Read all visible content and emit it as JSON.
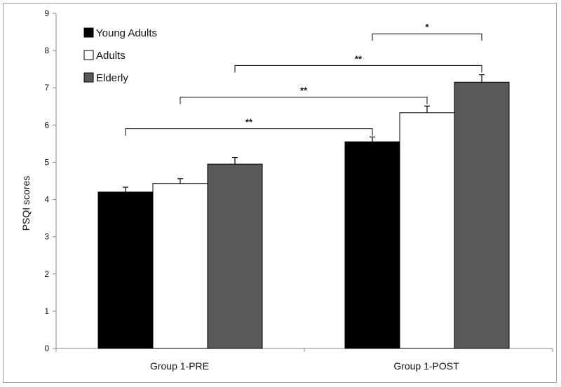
{
  "chart_data": {
    "type": "bar",
    "title": "",
    "xlabel": "",
    "ylabel": "PSQI scores",
    "ylim": [
      0,
      9
    ],
    "yticks": [
      0,
      1,
      2,
      3,
      4,
      5,
      6,
      7,
      8,
      9
    ],
    "grid": false,
    "legend_position": "top-left",
    "categories": [
      "Group 1-PRE",
      "Group 1-POST"
    ],
    "series": [
      {
        "name": "Young Adults",
        "color": "#000000",
        "values": [
          4.2,
          5.55
        ],
        "errors": [
          0.13,
          0.13
        ]
      },
      {
        "name": "Adults",
        "color": "#ffffff",
        "values": [
          4.43,
          6.33
        ],
        "errors": [
          0.13,
          0.18
        ]
      },
      {
        "name": "Elderly",
        "color": "#595959",
        "values": [
          4.95,
          7.15
        ],
        "errors": [
          0.18,
          0.2
        ]
      }
    ],
    "significance": [
      {
        "from": [
          0,
          0
        ],
        "to": [
          1,
          0
        ],
        "label": "**",
        "y": 5.9
      },
      {
        "from": [
          0,
          1
        ],
        "to": [
          1,
          1
        ],
        "label": "**",
        "y": 6.75
      },
      {
        "from": [
          0,
          2
        ],
        "to": [
          1,
          2
        ],
        "label": "**",
        "y": 7.6
      },
      {
        "from": [
          1,
          0
        ],
        "to": [
          1,
          2
        ],
        "label": "*",
        "y": 8.45
      }
    ]
  }
}
